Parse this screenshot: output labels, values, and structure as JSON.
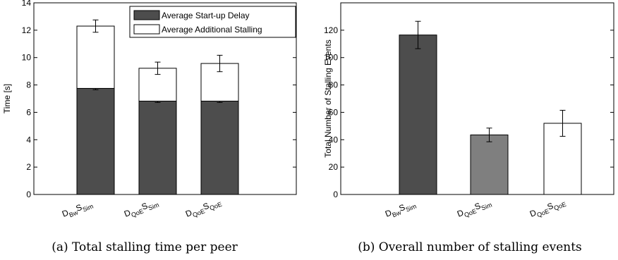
{
  "chart_data": [
    {
      "type": "bar",
      "stacked": true,
      "caption": "(a) Total stalling time per peer",
      "ylabel": "Time [s]",
      "ylim": [
        0,
        14
      ],
      "yticks": [
        0,
        2,
        4,
        6,
        8,
        10,
        12,
        14
      ],
      "categories": [
        {
          "base": "D",
          "sub1": "Bw",
          "mid": "S",
          "sub2": "Sim"
        },
        {
          "base": "D",
          "sub1": "QoE",
          "mid": "S",
          "sub2": "Sim"
        },
        {
          "base": "D",
          "sub1": "QoE",
          "mid": "S",
          "sub2": "QoE"
        }
      ],
      "series": [
        {
          "name": "Average Start-up Delay",
          "color": "#4d4d4d",
          "values": [
            7.75,
            6.82,
            6.82
          ],
          "errors": [
            0.1,
            0.1,
            0.1
          ]
        },
        {
          "name": "Average Additional Stalling",
          "color": "#ffffff",
          "values": [
            4.55,
            2.4,
            2.75
          ],
          "errors": [
            0.45,
            0.45,
            0.6
          ]
        }
      ],
      "legend_position": "top-right",
      "grid": false
    },
    {
      "type": "bar",
      "caption": "(b) Overall number of stalling events",
      "ylabel": "Total Number of Stalling Events",
      "ylim": [
        0,
        140
      ],
      "yticks": [
        0,
        20,
        40,
        60,
        80,
        100,
        120
      ],
      "categories": [
        {
          "base": "D",
          "sub1": "Bw",
          "mid": "S",
          "sub2": "Sim"
        },
        {
          "base": "D",
          "sub1": "QoE",
          "mid": "S",
          "sub2": "Sim"
        },
        {
          "base": "D",
          "sub1": "QoE",
          "mid": "S",
          "sub2": "QoE"
        }
      ],
      "values": [
        116.5,
        43.5,
        52
      ],
      "errors": [
        10,
        5,
        9.5
      ],
      "colors": [
        "#4d4d4d",
        "#7f7f7f",
        "#ffffff"
      ],
      "grid": false
    }
  ]
}
